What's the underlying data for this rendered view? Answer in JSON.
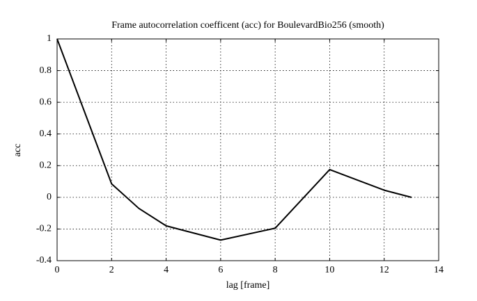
{
  "chart_data": {
    "type": "line",
    "title": "Frame autocorrelation coefficent (acc) for BoulevardBio256 (smooth)",
    "xlabel": "lag [frame]",
    "ylabel": "acc",
    "x": [
      0,
      2,
      3,
      4,
      6,
      8,
      10,
      12,
      13
    ],
    "series": [
      {
        "name": "acc",
        "color": "#000000",
        "values": [
          1,
          0.085,
          -0.07,
          -0.18,
          -0.27,
          -0.195,
          0.175,
          0.045,
          0
        ]
      }
    ],
    "xlim": [
      0,
      14
    ],
    "xticks": [
      0,
      2,
      4,
      6,
      8,
      10,
      12,
      14
    ],
    "ylim": [
      -0.4,
      1
    ],
    "yticks": [
      -0.4,
      -0.2,
      0,
      0.2,
      0.4,
      0.6,
      0.8,
      1
    ],
    "grid": true
  }
}
